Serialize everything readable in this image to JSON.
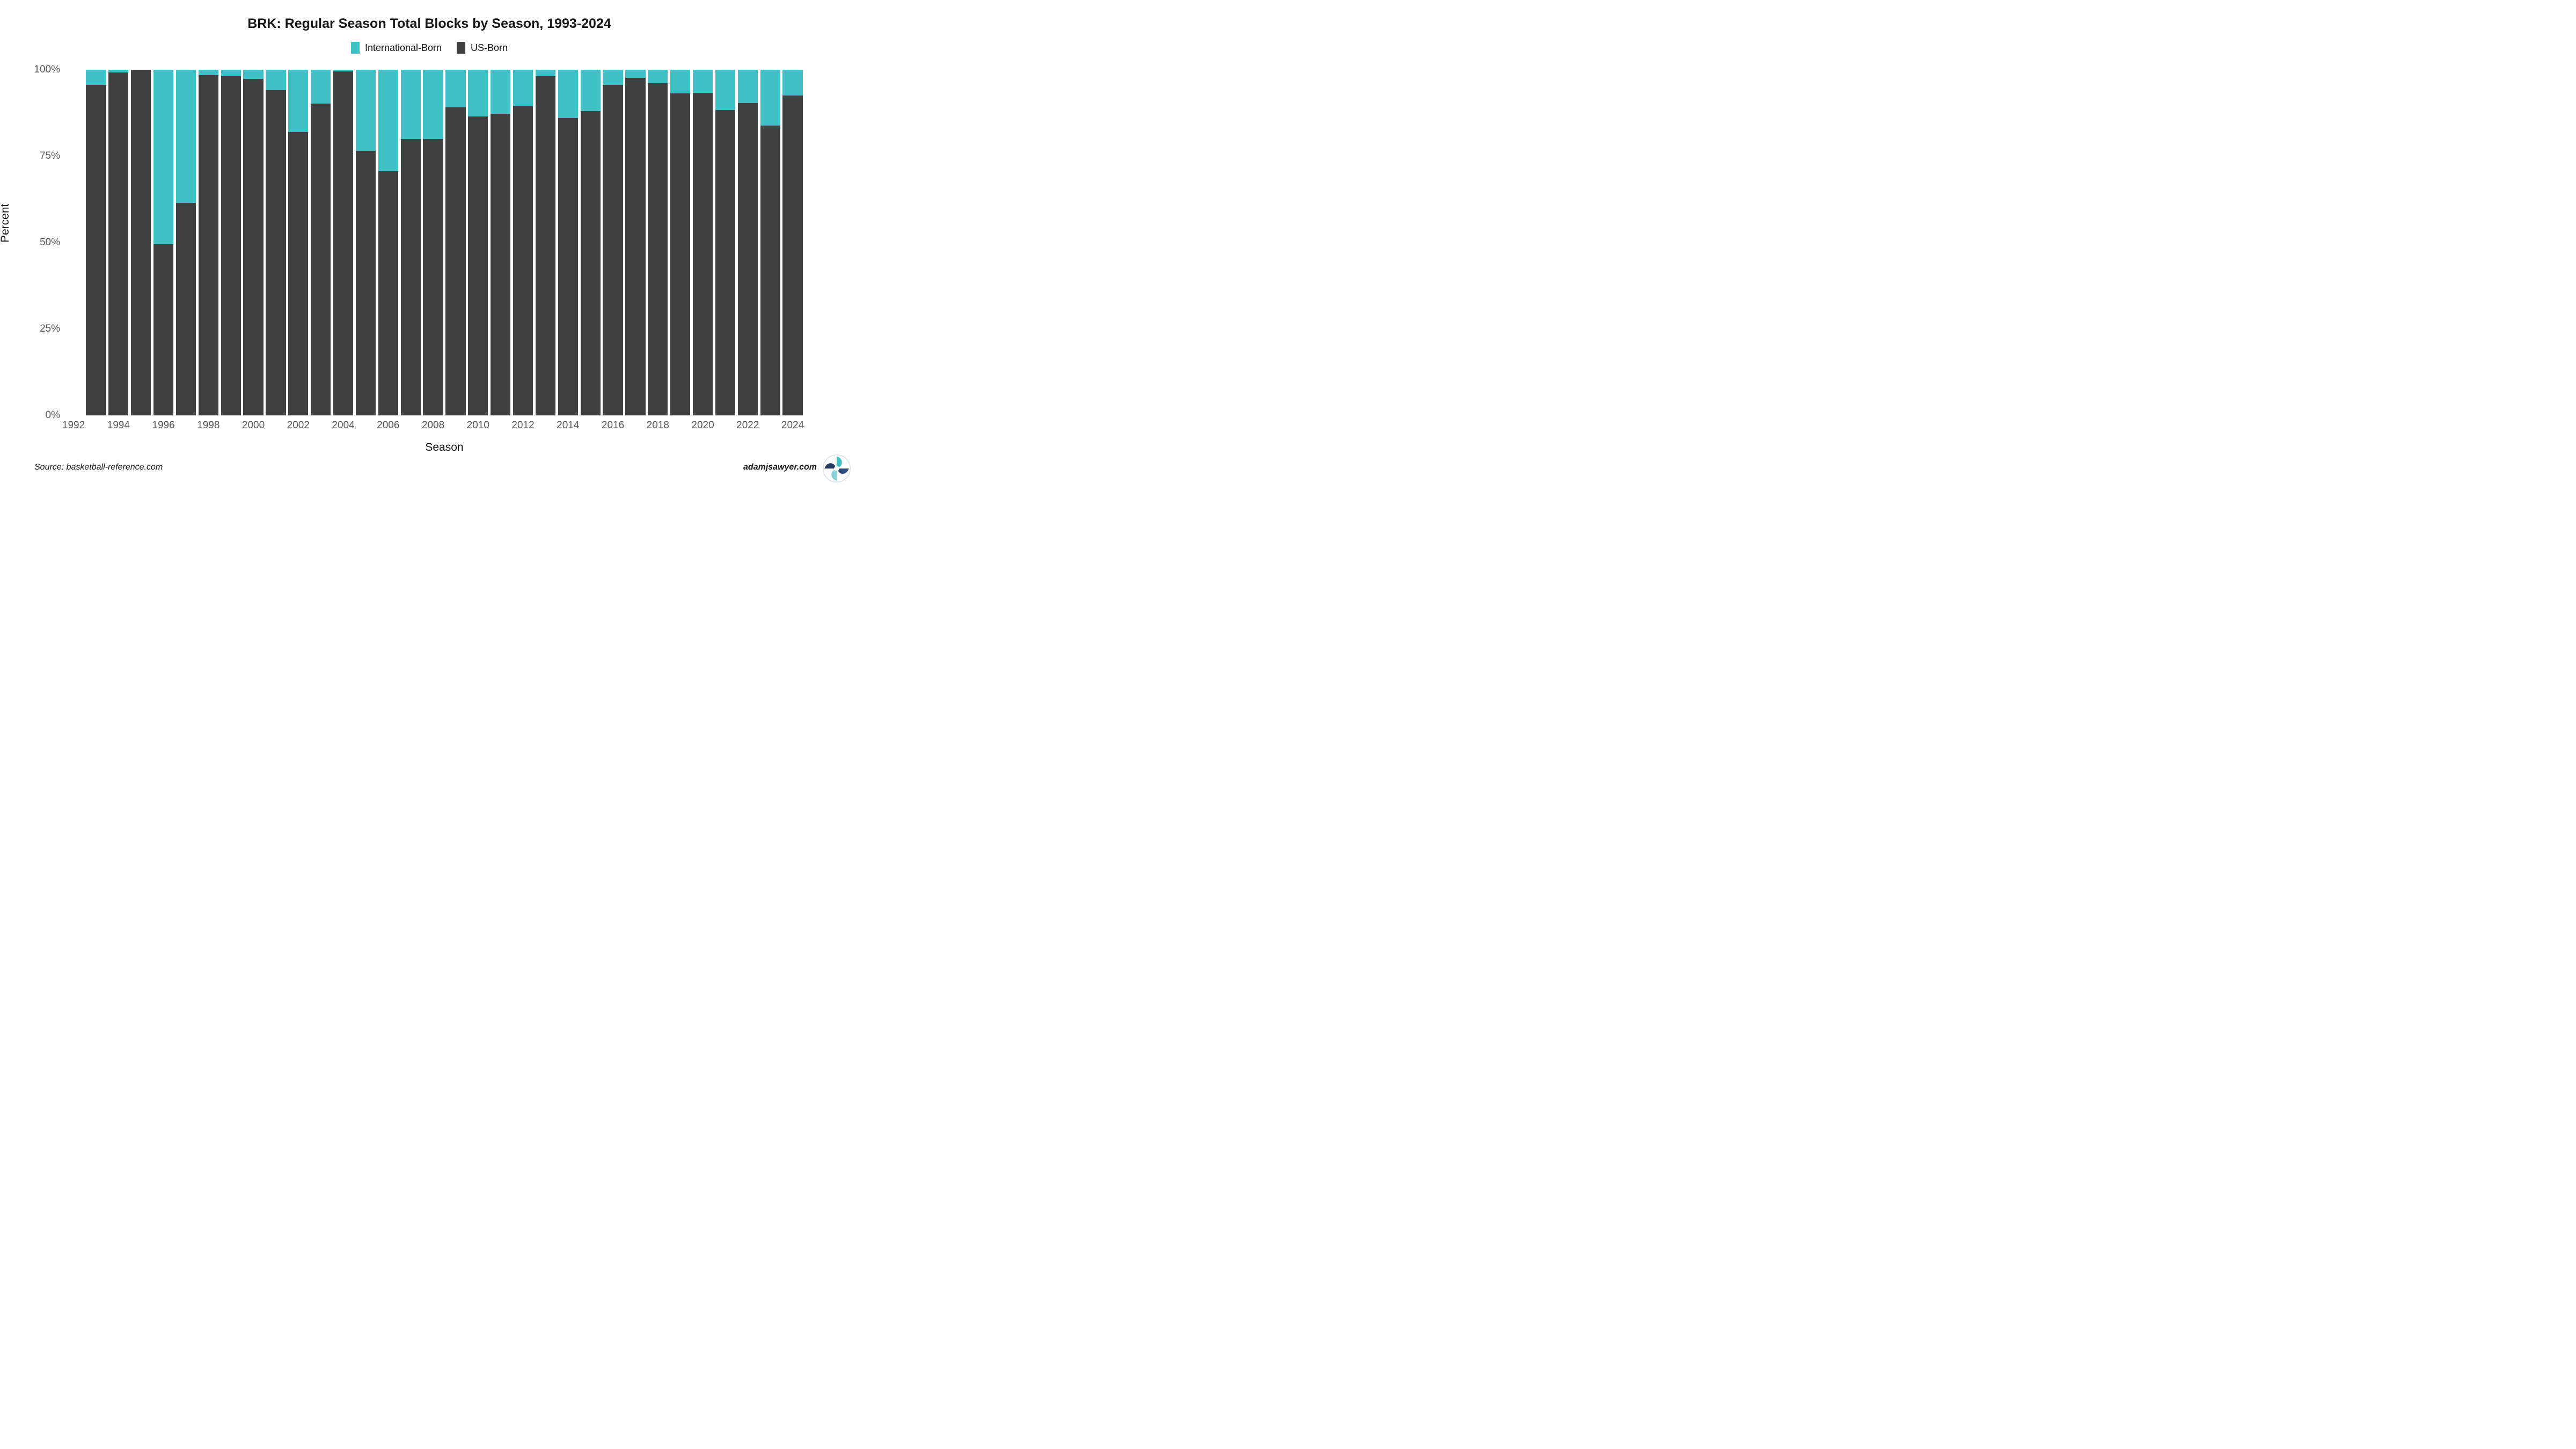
{
  "title": "BRK: Regular Season Total Blocks by Season, 1993-2024",
  "legend": {
    "items": [
      {
        "label": "International-Born",
        "color": "#3EC0C6"
      },
      {
        "label": "US-Born",
        "color": "#404040"
      }
    ]
  },
  "y_axis": {
    "label": "Percent",
    "ticks": [
      {
        "label": "100%",
        "value": 100
      },
      {
        "label": "75%",
        "value": 75
      },
      {
        "label": "50%",
        "value": 50
      },
      {
        "label": "25%",
        "value": 25
      },
      {
        "label": "0%",
        "value": 0
      }
    ]
  },
  "x_axis": {
    "label": "Season",
    "ticks": [
      {
        "label": "1992",
        "year": 1992
      },
      {
        "label": "1994",
        "year": 1994
      },
      {
        "label": "1996",
        "year": 1996
      },
      {
        "label": "1998",
        "year": 1998
      },
      {
        "label": "2000",
        "year": 2000
      },
      {
        "label": "2002",
        "year": 2002
      },
      {
        "label": "2004",
        "year": 2004
      },
      {
        "label": "2006",
        "year": 2006
      },
      {
        "label": "2008",
        "year": 2008
      },
      {
        "label": "2010",
        "year": 2010
      },
      {
        "label": "2012",
        "year": 2012
      },
      {
        "label": "2014",
        "year": 2014
      },
      {
        "label": "2016",
        "year": 2016
      },
      {
        "label": "2018",
        "year": 2018
      },
      {
        "label": "2020",
        "year": 2020
      },
      {
        "label": "2022",
        "year": 2022
      },
      {
        "label": "2024",
        "year": 2024
      }
    ]
  },
  "footer": {
    "source": "Source: basketball-reference.com",
    "watermark": "adamjsawyer.com"
  },
  "chart_data": {
    "type": "bar",
    "subtype": "stacked-percent",
    "title": "BRK: Regular Season Total Blocks by Season, 1993-2024",
    "xlabel": "Season",
    "ylabel": "Percent",
    "ylim": [
      0,
      100
    ],
    "grid": false,
    "legend_position": "top-center",
    "categories": [
      1993,
      1994,
      1995,
      1996,
      1997,
      1998,
      1999,
      2000,
      2001,
      2002,
      2003,
      2004,
      2005,
      2006,
      2007,
      2008,
      2009,
      2010,
      2011,
      2012,
      2013,
      2014,
      2015,
      2016,
      2017,
      2018,
      2019,
      2020,
      2021,
      2022,
      2023,
      2024
    ],
    "series": [
      {
        "name": "US-Born",
        "color": "#404040",
        "values": [
          95.7,
          99.2,
          100.0,
          49.5,
          61.5,
          98.5,
          98.2,
          97.3,
          94.1,
          82.0,
          90.2,
          99.5,
          76.5,
          70.6,
          79.9,
          80.0,
          89.1,
          86.5,
          87.2,
          89.4,
          98.2,
          86.0,
          88.0,
          95.7,
          97.7,
          96.1,
          93.1,
          93.4,
          88.3,
          90.4,
          83.8,
          92.5
        ]
      },
      {
        "name": "International-Born",
        "color": "#3EC0C6",
        "values": [
          4.3,
          0.8,
          0.0,
          50.5,
          38.5,
          1.5,
          1.8,
          2.7,
          5.9,
          18.0,
          9.8,
          0.5,
          23.5,
          29.4,
          20.1,
          20.0,
          10.9,
          13.5,
          12.8,
          10.6,
          1.8,
          14.0,
          12.0,
          4.3,
          2.3,
          3.9,
          6.9,
          6.6,
          11.7,
          9.6,
          16.2,
          7.5
        ]
      }
    ],
    "axis_year_span": {
      "first_slot_year": 1993,
      "slots": 32,
      "axis_left_year": 1992.5
    }
  }
}
